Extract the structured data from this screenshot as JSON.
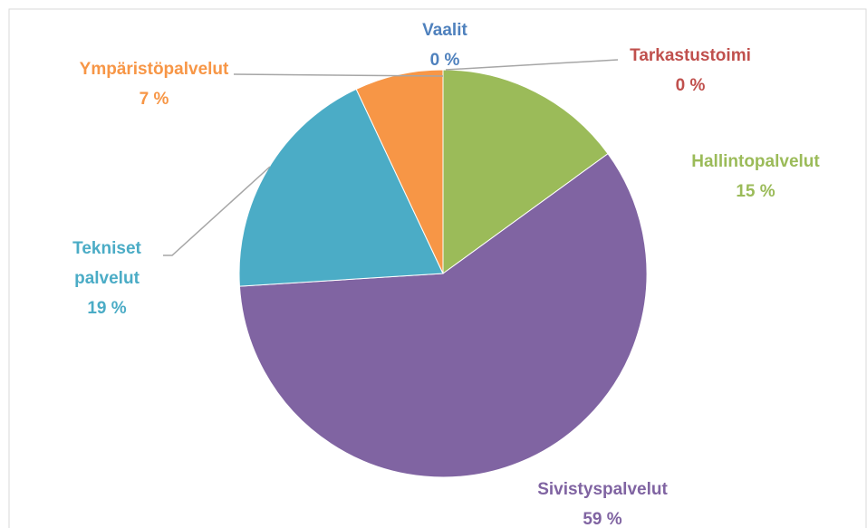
{
  "chart_data": {
    "type": "pie",
    "categories": [
      "Vaalit",
      "Tarkastustoimi",
      "Hallintopalvelut",
      "Sivistyspalvelut",
      "Tekniset palvelut",
      "Ympäristöpalvelut"
    ],
    "values": [
      0,
      0,
      15,
      59,
      19,
      7
    ],
    "value_labels": [
      "0 %",
      "0 %",
      "15 %",
      "59 %",
      "19 %",
      "7 %"
    ],
    "colors": [
      "#4f81bd",
      "#c0504d",
      "#9bbb59",
      "#8064a2",
      "#4bacc6",
      "#f79646"
    ]
  }
}
